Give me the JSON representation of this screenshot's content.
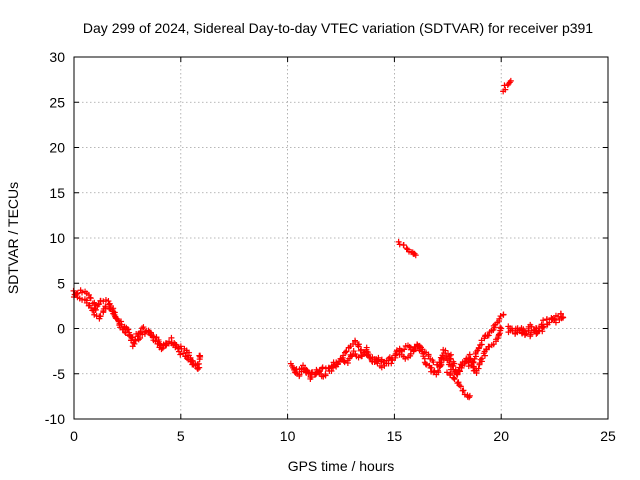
{
  "chart_data": {
    "type": "scatter",
    "title": "Day 299 of 2024, Sidereal Day-to-day VTEC variation (SDTVAR) for receiver p391",
    "xlabel": "GPS time / hours",
    "ylabel": "SDTVAR / TECUs",
    "xlim": [
      0,
      25
    ],
    "ylim": [
      -10,
      30
    ],
    "xticks": [
      0,
      5,
      10,
      15,
      20,
      25
    ],
    "yticks": [
      -10,
      -5,
      0,
      5,
      10,
      15,
      20,
      25,
      30
    ],
    "grid": true,
    "marker": "+",
    "color": "#ff0000",
    "series": [
      {
        "name": "SDTVAR",
        "segments": [
          {
            "x": [
              0.0,
              0.3,
              0.6,
              0.9,
              1.0,
              1.3,
              1.6,
              1.9,
              2.1,
              2.4,
              2.6,
              2.8,
              3.0,
              3.3,
              3.6,
              3.9,
              4.1,
              4.4,
              4.7,
              5.0,
              5.3,
              5.5,
              5.8,
              5.9
            ],
            "y": [
              3.5,
              4.2,
              3.8,
              3.0,
              2.0,
              3.2,
              3.0,
              1.5,
              0.8,
              0.2,
              -0.5,
              -1.8,
              -0.5,
              0.0,
              -0.7,
              -1.2,
              -2.2,
              -1.5,
              -1.8,
              -2.0,
              -2.5,
              -3.5,
              -4.5,
              -3.0
            ]
          },
          {
            "x": [
              0.0,
              0.2,
              0.5,
              0.8,
              1.2,
              1.5,
              1.8,
              2.0,
              2.3,
              2.7,
              2.9,
              3.2,
              3.5,
              3.8,
              4.0,
              4.3,
              4.6,
              4.9,
              5.2,
              5.6
            ],
            "y": [
              4.0,
              3.5,
              3.2,
              2.2,
              1.0,
              2.5,
              2.2,
              1.0,
              -0.2,
              -1.0,
              -1.2,
              -0.8,
              -0.2,
              -1.5,
              -1.8,
              -2.0,
              -1.2,
              -2.6,
              -3.0,
              -4.0
            ]
          },
          {
            "x": [
              10.2,
              10.5,
              10.8,
              11.1,
              11.4,
              11.7,
              12.0,
              12.3,
              12.6,
              12.9,
              13.2,
              13.5,
              13.8,
              14.1,
              14.4,
              14.7,
              15.0,
              15.3,
              15.6,
              15.9,
              16.2,
              16.5,
              16.8,
              17.1,
              17.4,
              17.7,
              18.0,
              18.3,
              18.6,
              18.9,
              19.2,
              19.5,
              19.8,
              20.1
            ],
            "y": [
              -4.0,
              -5.2,
              -4.5,
              -5.5,
              -5.0,
              -4.2,
              -4.6,
              -4.0,
              -3.2,
              -2.0,
              -1.5,
              -2.5,
              -3.0,
              -3.6,
              -4.2,
              -3.4,
              -3.0,
              -2.6,
              -1.8,
              -2.4,
              -2.0,
              -2.8,
              -3.5,
              -4.2,
              -3.0,
              -4.5,
              -4.8,
              -3.6,
              -4.2,
              -2.5,
              -1.0,
              -0.5,
              0.8,
              1.5
            ]
          },
          {
            "x": [
              10.3,
              10.7,
              11.0,
              11.3,
              11.6,
              11.9,
              12.2,
              12.5,
              12.8,
              13.1,
              13.4,
              13.7,
              14.0,
              14.3,
              14.6,
              14.9,
              15.2,
              15.5,
              15.8,
              16.1,
              16.4,
              16.7,
              17.0,
              17.3,
              17.6,
              17.9,
              18.2,
              18.5,
              18.8,
              19.1,
              19.4,
              19.7,
              20.0
            ],
            "y": [
              -4.8,
              -4.2,
              -5.0,
              -4.6,
              -5.3,
              -4.8,
              -3.8,
              -3.5,
              -3.8,
              -2.6,
              -3.2,
              -2.2,
              -3.8,
              -3.2,
              -4.0,
              -3.6,
              -2.2,
              -3.2,
              -2.8,
              -1.6,
              -3.6,
              -4.5,
              -5.0,
              -2.5,
              -2.8,
              -5.2,
              -3.8,
              -3.0,
              -5.0,
              -3.5,
              -2.0,
              -1.5,
              0.0
            ]
          },
          {
            "x": [
              17.5,
              17.8,
              18.1,
              18.3,
              18.5
            ],
            "y": [
              -5.0,
              -5.5,
              -6.5,
              -7.2,
              -7.6
            ]
          },
          {
            "x": [
              20.3,
              20.7,
              21.0,
              21.3,
              21.6,
              21.9,
              22.2,
              22.5,
              22.8
            ],
            "y": [
              0.2,
              -0.5,
              0.0,
              -0.8,
              0.2,
              -0.2,
              0.6,
              1.2,
              1.6
            ]
          },
          {
            "x": [
              20.4,
              20.8,
              21.1,
              21.4,
              21.7,
              22.0,
              22.3,
              22.6,
              22.9
            ],
            "y": [
              -0.5,
              0.0,
              -0.8,
              0.3,
              -0.6,
              0.8,
              1.0,
              0.8,
              1.2
            ]
          },
          {
            "x": [
              15.2,
              15.4,
              15.6,
              15.8,
              16.0
            ],
            "y": [
              9.5,
              9.2,
              8.8,
              8.5,
              8.1
            ]
          },
          {
            "x": [
              20.1,
              20.2,
              20.3,
              20.4
            ],
            "y": [
              26.3,
              26.7,
              27.0,
              27.2
            ]
          }
        ]
      }
    ]
  }
}
